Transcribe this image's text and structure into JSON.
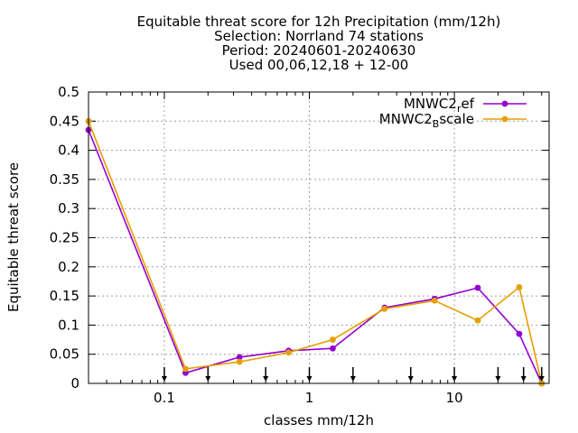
{
  "chart_data": {
    "type": "line",
    "title_lines": [
      "Equitable threat score  for 12h Precipitation (mm/12h)",
      "Selection: Norrland     74 stations",
      "Period: 20240601-20240630",
      "Used 00,06,12,18 + 12-00"
    ],
    "xlabel": "classes mm/12h",
    "ylabel": "Equitable threat score",
    "x_scale": "log",
    "xlim": [
      0.03,
      45
    ],
    "ylim": [
      0,
      0.5
    ],
    "x_ticks": [
      {
        "value": 0.1,
        "label": "0.1"
      },
      {
        "value": 1,
        "label": "1"
      },
      {
        "value": 10,
        "label": "10"
      }
    ],
    "y_ticks": [
      {
        "value": 0,
        "label": "0"
      },
      {
        "value": 0.05,
        "label": "0.05"
      },
      {
        "value": 0.1,
        "label": "0.1"
      },
      {
        "value": 0.15,
        "label": "0.15"
      },
      {
        "value": 0.2,
        "label": "0.2"
      },
      {
        "value": 0.25,
        "label": "0.25"
      },
      {
        "value": 0.3,
        "label": "0.3"
      },
      {
        "value": 0.35,
        "label": "0.35"
      },
      {
        "value": 0.4,
        "label": "0.4"
      },
      {
        "value": 0.45,
        "label": "0.45"
      },
      {
        "value": 0.5,
        "label": "0.5"
      }
    ],
    "grid": true,
    "legend_position": "top-right",
    "class_markers": [
      0.1,
      0.2,
      0.5,
      1,
      2,
      5,
      10,
      20,
      30,
      40
    ],
    "series": [
      {
        "name_base": "MNWC2",
        "name_sub": "r",
        "name_rest": "ef",
        "color": "#9400d3",
        "x": [
          0.03,
          0.14,
          0.33,
          0.72,
          1.45,
          3.3,
          7.3,
          14.5,
          28,
          40
        ],
        "values": [
          0.435,
          0.018,
          0.045,
          0.056,
          0.06,
          0.13,
          0.145,
          0.164,
          0.085,
          0.0
        ]
      },
      {
        "name_base": "MNWC2",
        "name_sub": "B",
        "name_rest": "scale",
        "color": "#e69f00",
        "x": [
          0.03,
          0.14,
          0.33,
          0.72,
          1.45,
          3.3,
          7.3,
          14.5,
          28,
          40
        ],
        "values": [
          0.45,
          0.025,
          0.037,
          0.053,
          0.075,
          0.128,
          0.142,
          0.108,
          0.165,
          0.0
        ]
      }
    ]
  }
}
